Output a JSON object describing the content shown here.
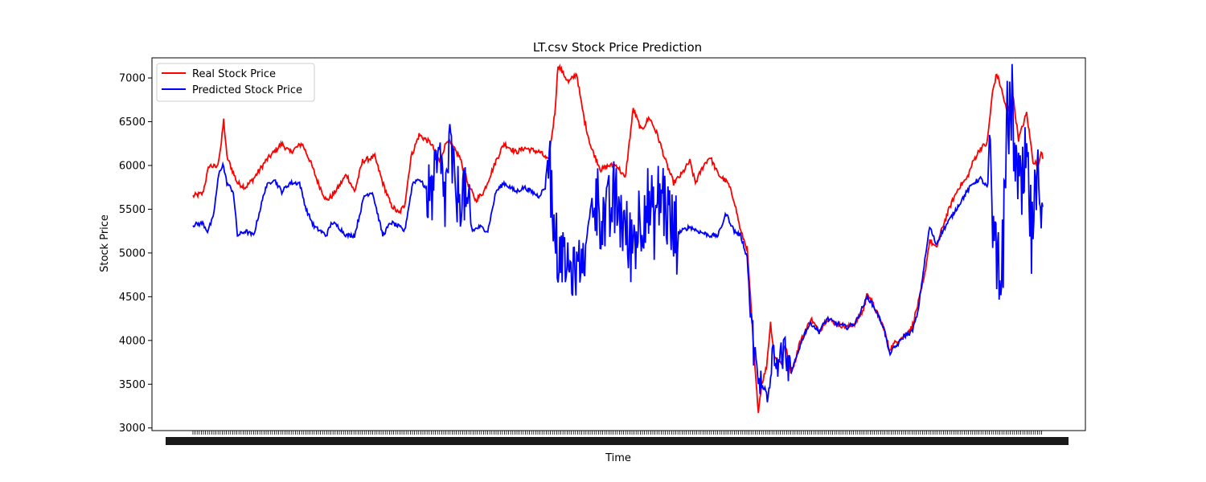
{
  "chart_data": {
    "type": "line",
    "title": "LT.csv Stock Price Prediction",
    "xlabel": "Time",
    "ylabel": "Stock Price",
    "ylim": [
      2970,
      7230
    ],
    "yticks": [
      3000,
      3500,
      4000,
      4500,
      5000,
      5500,
      6000,
      6500,
      7000
    ],
    "grid": false,
    "legend_position": "top-left",
    "x_tick_labels_overlapping": true,
    "x_points": 1000,
    "series": [
      {
        "name": "Real Stock Price",
        "color": "#ff0000",
        "keypoints": [
          [
            0,
            5650
          ],
          [
            12,
            5680
          ],
          [
            20,
            6000
          ],
          [
            30,
            5980
          ],
          [
            35,
            6250
          ],
          [
            38,
            6520
          ],
          [
            42,
            6100
          ],
          [
            55,
            5800
          ],
          [
            65,
            5750
          ],
          [
            75,
            5850
          ],
          [
            90,
            6050
          ],
          [
            100,
            6150
          ],
          [
            110,
            6250
          ],
          [
            120,
            6150
          ],
          [
            135,
            6250
          ],
          [
            145,
            6050
          ],
          [
            155,
            5800
          ],
          [
            165,
            5600
          ],
          [
            172,
            5650
          ],
          [
            180,
            5750
          ],
          [
            190,
            5900
          ],
          [
            200,
            5700
          ],
          [
            210,
            6050
          ],
          [
            225,
            6100
          ],
          [
            235,
            5800
          ],
          [
            245,
            5550
          ],
          [
            255,
            5450
          ],
          [
            262,
            5550
          ],
          [
            270,
            6100
          ],
          [
            280,
            6350
          ],
          [
            295,
            6250
          ],
          [
            305,
            6050
          ],
          [
            315,
            6300
          ],
          [
            330,
            6100
          ],
          [
            340,
            5800
          ],
          [
            350,
            5600
          ],
          [
            360,
            5700
          ],
          [
            375,
            6050
          ],
          [
            385,
            6250
          ],
          [
            400,
            6150
          ],
          [
            410,
            6200
          ],
          [
            430,
            6150
          ],
          [
            440,
            6050
          ],
          [
            448,
            6600
          ],
          [
            452,
            7150
          ],
          [
            465,
            6950
          ],
          [
            475,
            7050
          ],
          [
            480,
            6750
          ],
          [
            485,
            6500
          ],
          [
            493,
            6200
          ],
          [
            505,
            5950
          ],
          [
            515,
            6000
          ],
          [
            525,
            6000
          ],
          [
            535,
            5850
          ],
          [
            545,
            6650
          ],
          [
            555,
            6400
          ],
          [
            565,
            6550
          ],
          [
            575,
            6350
          ],
          [
            585,
            6050
          ],
          [
            595,
            5800
          ],
          [
            605,
            5900
          ],
          [
            615,
            6050
          ],
          [
            622,
            5800
          ],
          [
            632,
            6000
          ],
          [
            640,
            6100
          ],
          [
            650,
            5900
          ],
          [
            662,
            5800
          ],
          [
            670,
            5600
          ],
          [
            678,
            5250
          ],
          [
            686,
            5050
          ],
          [
            690,
            4500
          ],
          [
            694,
            3900
          ],
          [
            698,
            3400
          ],
          [
            700,
            3200
          ],
          [
            704,
            3500
          ],
          [
            710,
            3700
          ],
          [
            715,
            4200
          ],
          [
            720,
            3800
          ],
          [
            728,
            3750
          ],
          [
            733,
            3950
          ],
          [
            740,
            3650
          ],
          [
            745,
            3750
          ],
          [
            750,
            3950
          ],
          [
            758,
            4100
          ],
          [
            765,
            4250
          ],
          [
            775,
            4100
          ],
          [
            785,
            4250
          ],
          [
            795,
            4200
          ],
          [
            810,
            4150
          ],
          [
            820,
            4200
          ],
          [
            830,
            4350
          ],
          [
            835,
            4550
          ],
          [
            845,
            4350
          ],
          [
            855,
            4150
          ],
          [
            862,
            3900
          ],
          [
            872,
            4000
          ],
          [
            880,
            4050
          ],
          [
            890,
            4150
          ],
          [
            897,
            4400
          ],
          [
            905,
            4700
          ],
          [
            912,
            5150
          ],
          [
            920,
            5050
          ],
          [
            928,
            5300
          ],
          [
            938,
            5550
          ],
          [
            948,
            5750
          ],
          [
            958,
            5850
          ],
          [
            966,
            6050
          ],
          [
            975,
            6200
          ],
          [
            983,
            6250
          ],
          [
            990,
            6850
          ],
          [
            995,
            7050
          ],
          [
            1000,
            6900
          ],
          [
            1008,
            6600
          ],
          [
            1015,
            6800
          ],
          [
            1022,
            6300
          ],
          [
            1032,
            6600
          ],
          [
            1040,
            6050
          ],
          [
            1047,
            6000
          ],
          [
            1050,
            6180
          ],
          [
            1052,
            6100
          ]
        ]
      },
      {
        "name": "Predicted Stock Price",
        "color": "#0000ff",
        "keypoints": [
          [
            0,
            5320
          ],
          [
            12,
            5340
          ],
          [
            18,
            5250
          ],
          [
            25,
            5400
          ],
          [
            32,
            5900
          ],
          [
            37,
            6020
          ],
          [
            42,
            5800
          ],
          [
            50,
            5700
          ],
          [
            55,
            5200
          ],
          [
            65,
            5250
          ],
          [
            75,
            5200
          ],
          [
            90,
            5750
          ],
          [
            100,
            5850
          ],
          [
            110,
            5700
          ],
          [
            120,
            5800
          ],
          [
            132,
            5800
          ],
          [
            140,
            5500
          ],
          [
            150,
            5300
          ],
          [
            158,
            5250
          ],
          [
            165,
            5200
          ],
          [
            172,
            5350
          ],
          [
            180,
            5300
          ],
          [
            190,
            5200
          ],
          [
            200,
            5200
          ],
          [
            212,
            5650
          ],
          [
            222,
            5700
          ],
          [
            235,
            5200
          ],
          [
            245,
            5350
          ],
          [
            255,
            5300
          ],
          [
            262,
            5250
          ],
          [
            272,
            5800
          ],
          [
            280,
            5850
          ],
          [
            295,
            5650
          ],
          [
            305,
            6050
          ],
          [
            312,
            5600
          ],
          [
            318,
            6250
          ],
          [
            325,
            5650
          ],
          [
            335,
            5700
          ],
          [
            345,
            5250
          ],
          [
            355,
            5300
          ],
          [
            365,
            5250
          ],
          [
            375,
            5700
          ],
          [
            385,
            5800
          ],
          [
            400,
            5700
          ],
          [
            410,
            5750
          ],
          [
            428,
            5650
          ],
          [
            436,
            5750
          ],
          [
            441,
            6300
          ],
          [
            446,
            5100
          ],
          [
            460,
            4900
          ],
          [
            470,
            4750
          ],
          [
            480,
            4900
          ],
          [
            485,
            5000
          ],
          [
            495,
            5700
          ],
          [
            505,
            5500
          ],
          [
            512,
            5300
          ],
          [
            520,
            5600
          ],
          [
            530,
            5450
          ],
          [
            540,
            5050
          ],
          [
            550,
            5300
          ],
          [
            560,
            5600
          ],
          [
            570,
            5350
          ],
          [
            580,
            5700
          ],
          [
            595,
            5200
          ],
          [
            605,
            5250
          ],
          [
            615,
            5300
          ],
          [
            625,
            5250
          ],
          [
            640,
            5200
          ],
          [
            650,
            5200
          ],
          [
            660,
            5450
          ],
          [
            670,
            5250
          ],
          [
            678,
            5200
          ],
          [
            686,
            4950
          ],
          [
            690,
            4300
          ],
          [
            695,
            3800
          ],
          [
            700,
            3550
          ],
          [
            706,
            3400
          ],
          [
            712,
            3500
          ],
          [
            718,
            3950
          ],
          [
            725,
            3750
          ],
          [
            733,
            3900
          ],
          [
            740,
            3600
          ],
          [
            745,
            3750
          ],
          [
            750,
            3900
          ],
          [
            758,
            4100
          ],
          [
            765,
            4200
          ],
          [
            775,
            4100
          ],
          [
            785,
            4250
          ],
          [
            795,
            4200
          ],
          [
            810,
            4150
          ],
          [
            820,
            4200
          ],
          [
            830,
            4400
          ],
          [
            835,
            4500
          ],
          [
            845,
            4350
          ],
          [
            855,
            4150
          ],
          [
            862,
            3850
          ],
          [
            872,
            3950
          ],
          [
            880,
            4050
          ],
          [
            890,
            4100
          ],
          [
            897,
            4300
          ],
          [
            905,
            4850
          ],
          [
            912,
            5300
          ],
          [
            920,
            5100
          ],
          [
            928,
            5250
          ],
          [
            938,
            5400
          ],
          [
            948,
            5550
          ],
          [
            958,
            5700
          ],
          [
            966,
            5800
          ],
          [
            975,
            5850
          ],
          [
            983,
            5750
          ],
          [
            988,
            5950
          ],
          [
            992,
            5100
          ],
          [
            997,
            4950
          ],
          [
            1003,
            5000
          ],
          [
            1008,
            6500
          ],
          [
            1014,
            6650
          ],
          [
            1020,
            5800
          ],
          [
            1025,
            5600
          ],
          [
            1032,
            6050
          ],
          [
            1038,
            5150
          ],
          [
            1045,
            5700
          ],
          [
            1052,
            5830
          ]
        ],
        "noisy_segments": [
          [
            290,
            345,
            380
          ],
          [
            440,
            455,
            450
          ],
          [
            455,
            485,
            300
          ],
          [
            495,
            600,
            500
          ],
          [
            688,
            740,
            220
          ],
          [
            985,
            1052,
            520
          ]
        ]
      }
    ]
  }
}
